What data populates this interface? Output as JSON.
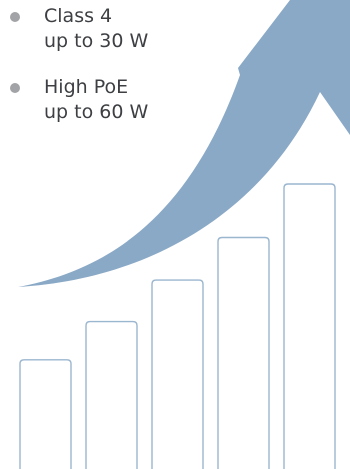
{
  "chart_data": {
    "type": "bar",
    "categories": [
      "",
      "",
      "",
      "",
      ""
    ],
    "values": [
      1,
      1.35,
      1.73,
      2.12,
      2.61
    ],
    "ylim": [
      0,
      2.61
    ],
    "grid": false,
    "series": [
      {
        "values": [
          1,
          1.35,
          1.73,
          2.12,
          2.61
        ]
      }
    ],
    "legend": {
      "placement": "top-left",
      "items": [
        {
          "line1": "Class 4",
          "line2": "up to 30 W"
        },
        {
          "line1": "High PoE",
          "line2": "up to 60 W"
        }
      ]
    },
    "colors": {
      "arrow": "#8aa9c6",
      "bar_stroke": "#9bb6cf",
      "bullet": "#a2a3a6",
      "text": "#3d3f43"
    }
  }
}
